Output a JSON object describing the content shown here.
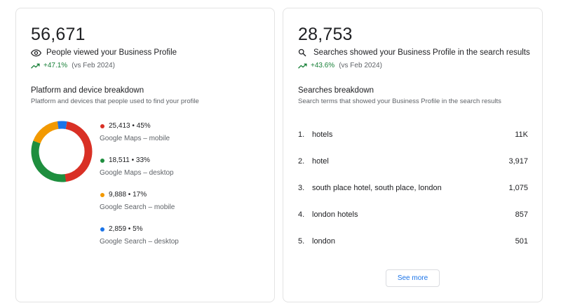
{
  "left_card": {
    "total": "56,671",
    "metric_label": "People viewed your Business Profile",
    "metric_icon": "eye-icon",
    "trend_pct": "+47.1%",
    "trend_compare": "(vs Feb 2024)",
    "section_title": "Platform and device breakdown",
    "section_subtitle": "Platform and devices that people used to find your profile",
    "breakdown": [
      {
        "value": "25,413 • 45%",
        "label": "Google Maps – mobile",
        "color": "#d93025",
        "share": 45
      },
      {
        "value": "18,511 • 33%",
        "label": "Google Maps – desktop",
        "color": "#1e8e3e",
        "share": 33
      },
      {
        "value": "9,888 • 17%",
        "label": "Google Search – mobile",
        "color": "#f29900",
        "share": 17
      },
      {
        "value": "2,859 • 5%",
        "label": "Google Search – desktop",
        "color": "#1a73e8",
        "share": 5
      }
    ]
  },
  "right_card": {
    "total": "28,753",
    "metric_label": "Searches showed your Business Profile in the search results",
    "metric_icon": "search-icon",
    "trend_pct": "+43.6%",
    "trend_compare": "(vs Feb 2024)",
    "section_title": "Searches breakdown",
    "section_subtitle": "Search terms that showed your Business Profile in the search results",
    "searches": [
      {
        "index": "1.",
        "term": "hotels",
        "value": "11K"
      },
      {
        "index": "2.",
        "term": "hotel",
        "value": "3,917"
      },
      {
        "index": "3.",
        "term": "south place hotel, south place, london",
        "value": "1,075"
      },
      {
        "index": "4.",
        "term": "london hotels",
        "value": "857"
      },
      {
        "index": "5.",
        "term": "london",
        "value": "501"
      }
    ],
    "see_more_label": "See more"
  },
  "colors": {
    "trend_green": "#188038",
    "link_blue": "#1a73e8"
  }
}
